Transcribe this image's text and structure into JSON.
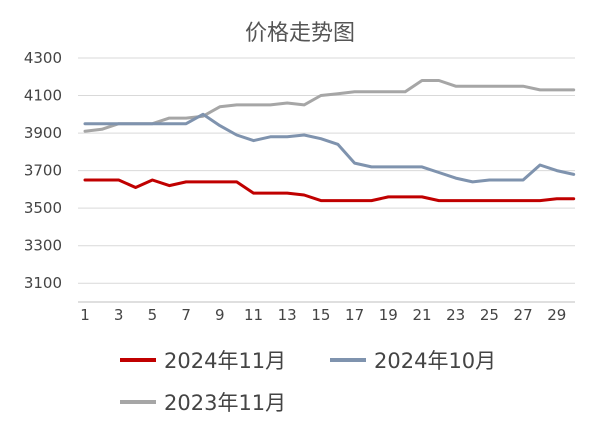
{
  "chart_data": {
    "type": "line",
    "title": "价格走势图",
    "xlabel": "",
    "ylabel": "",
    "x": [
      1,
      2,
      3,
      4,
      5,
      6,
      7,
      8,
      9,
      10,
      11,
      12,
      13,
      14,
      15,
      16,
      17,
      18,
      19,
      20,
      21,
      22,
      23,
      24,
      25,
      26,
      27,
      28,
      29,
      30
    ],
    "x_tick_labels": [
      "1",
      "3",
      "5",
      "7",
      "9",
      "11",
      "13",
      "15",
      "17",
      "19",
      "21",
      "23",
      "25",
      "27",
      "29"
    ],
    "y_tick_labels": [
      "3100",
      "3300",
      "3500",
      "3700",
      "3900",
      "4100",
      "4300"
    ],
    "ylim": [
      3000,
      4300
    ],
    "grid": "horizontal",
    "legend_position": "bottom",
    "series": [
      {
        "name": "2024年11月",
        "color": "#c00000",
        "values": [
          3650,
          3650,
          3650,
          3610,
          3650,
          3620,
          3640,
          3640,
          3640,
          3640,
          3580,
          3580,
          3580,
          3570,
          3540,
          3540,
          3540,
          3540,
          3560,
          3560,
          3560,
          3540,
          3540,
          3540,
          3540,
          3540,
          3540,
          3540,
          3550,
          3550
        ]
      },
      {
        "name": "2024年10月",
        "color": "#7f93ae",
        "values": [
          3950,
          3950,
          3950,
          3950,
          3950,
          3950,
          3950,
          4000,
          3940,
          3890,
          3860,
          3880,
          3880,
          3890,
          3870,
          3840,
          3740,
          3720,
          3720,
          3720,
          3720,
          3690,
          3660,
          3640,
          3650,
          3650,
          3650,
          3730,
          3700,
          3680
        ]
      },
      {
        "name": "2023年11月",
        "color": "#a6a6a6",
        "values": [
          3910,
          3920,
          3950,
          3950,
          3950,
          3980,
          3980,
          3990,
          4040,
          4050,
          4050,
          4050,
          4060,
          4050,
          4100,
          4110,
          4120,
          4120,
          4120,
          4120,
          4180,
          4180,
          4150,
          4150,
          4150,
          4150,
          4150,
          4130,
          4130,
          4130
        ]
      }
    ]
  }
}
